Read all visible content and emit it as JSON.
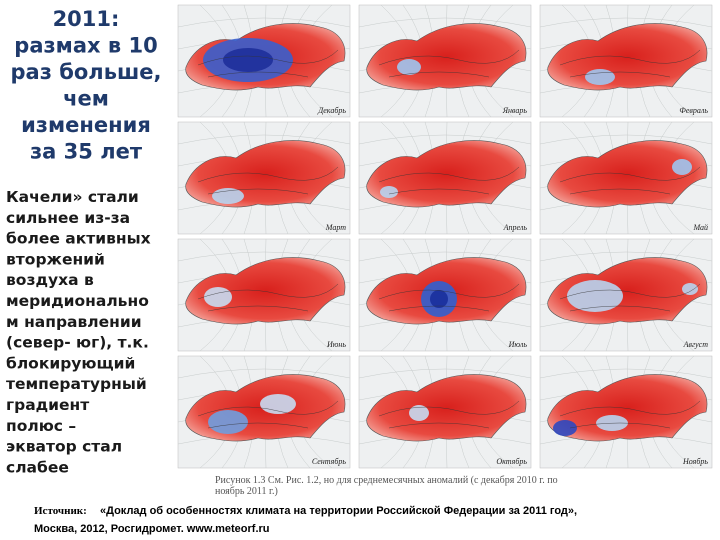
{
  "title": [
    "2011:",
    "размах в 10",
    "раз больше,",
    "чем",
    "изменения",
    "за 35 лет"
  ],
  "body": [
    "Качели» стали",
    "сильнее из-за",
    "более активных",
    "вторжений",
    "воздуха в",
    "меридионально",
    "м направлении",
    "(север- юг), т.к.",
    "блокирующий",
    "температурный",
    "градиент",
    "полюс –",
    "экватор стал",
    "слабее"
  ],
  "months": [
    "Декабрь",
    "Январь",
    "Февраль",
    "Март",
    "Апрель",
    "Май",
    "Июнь",
    "Июль",
    "Август",
    "Сентябрь",
    "Октябрь",
    "Ноябрь"
  ],
  "caption": [
    "Рисунок 1.3   См. Рис. 1.2, но для среднемесячных аномалий (с декабря 2010 г. по",
    "ноябрь 2011 г.)"
  ],
  "source": {
    "label": "Источник:",
    "text": [
      "«Доклад об особенностях климата на территории Российской Федерации за 2011 год»,",
      "Москва, 2012, Росгидромет. www.meteorf.ru"
    ]
  }
}
